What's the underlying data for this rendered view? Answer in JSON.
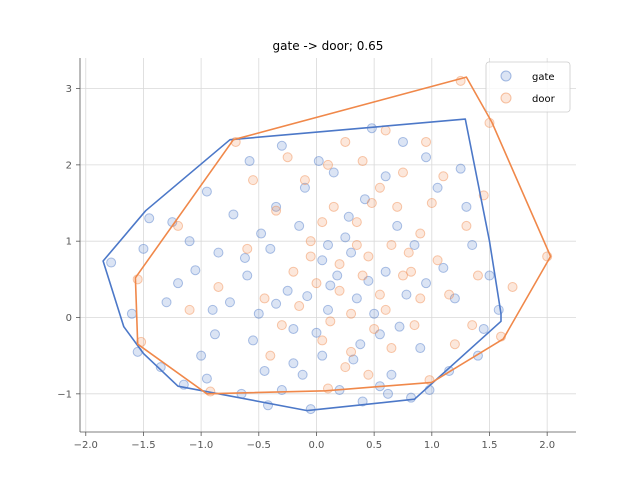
{
  "chart_data": {
    "type": "scatter",
    "title": "gate -> door; 0.65",
    "xlabel": "",
    "ylabel": "",
    "xlim": [
      -2.05,
      2.25
    ],
    "ylim": [
      -1.5,
      3.4
    ],
    "xticks": [
      -2.0,
      -1.5,
      -1.0,
      -0.5,
      0.0,
      0.5,
      1.0,
      1.5,
      2.0
    ],
    "xtick_labels": [
      "−2.0",
      "−1.5",
      "−1.0",
      "−0.5",
      "0.0",
      "0.5",
      "1.0",
      "1.5",
      "2.0"
    ],
    "yticks": [
      -1,
      0,
      1,
      2,
      3
    ],
    "ytick_labels": [
      "−1",
      "0",
      "1",
      "2",
      "3"
    ],
    "grid": true,
    "legend_position": "top-right",
    "series": [
      {
        "name": "gate",
        "color": "#4c78c8",
        "hull": [
          [
            -1.85,
            0.74
          ],
          [
            -1.48,
            1.4
          ],
          [
            -0.75,
            2.33
          ],
          [
            1.29,
            2.6
          ],
          [
            1.5,
            1.0
          ],
          [
            1.6,
            0.05
          ],
          [
            1.6,
            -0.05
          ],
          [
            0.85,
            -1.07
          ],
          [
            -0.08,
            -1.22
          ],
          [
            -1.2,
            -0.9
          ],
          [
            -1.5,
            -0.47
          ],
          [
            -1.67,
            -0.12
          ]
        ],
        "points": [
          [
            0.12,
            0.42
          ],
          [
            -0.35,
            0.18
          ],
          [
            0.55,
            -0.22
          ],
          [
            0.3,
            0.85
          ],
          [
            -0.6,
            0.55
          ],
          [
            0.05,
            -0.5
          ],
          [
            0.78,
            0.3
          ],
          [
            -0.15,
            1.2
          ],
          [
            0.42,
            1.55
          ],
          [
            -0.9,
            0.1
          ],
          [
            1.1,
            0.65
          ],
          [
            -1.2,
            0.45
          ],
          [
            0.2,
            -0.95
          ],
          [
            -0.45,
            -0.7
          ],
          [
            0.65,
            -0.75
          ],
          [
            -0.72,
            1.35
          ],
          [
            1.3,
            1.45
          ],
          [
            -1.45,
            1.3
          ],
          [
            0.95,
            2.1
          ],
          [
            -0.3,
            2.25
          ],
          [
            0.48,
            2.48
          ],
          [
            1.58,
            0.1
          ],
          [
            -1.78,
            0.72
          ],
          [
            -1.55,
            -0.45
          ],
          [
            -1.15,
            -0.88
          ],
          [
            -0.05,
            -1.2
          ],
          [
            0.82,
            -1.05
          ],
          [
            1.45,
            -0.15
          ],
          [
            0.1,
            0.1
          ],
          [
            -0.2,
            -0.15
          ],
          [
            0.35,
            0.25
          ],
          [
            -0.55,
            -0.3
          ],
          [
            0.6,
            0.6
          ],
          [
            -0.85,
            0.85
          ],
          [
            0.9,
            -0.4
          ],
          [
            -1.0,
            -0.5
          ],
          [
            0.25,
            1.05
          ],
          [
            -0.4,
            0.9
          ],
          [
            0.7,
            1.2
          ],
          [
            -1.3,
            0.2
          ],
          [
            1.2,
            0.25
          ],
          [
            -0.65,
            -1.0
          ],
          [
            0.4,
            -1.1
          ],
          [
            -0.1,
            1.7
          ],
          [
            0.15,
            1.9
          ],
          [
            -0.95,
            1.65
          ],
          [
            1.05,
            1.7
          ],
          [
            -1.1,
            1.0
          ],
          [
            0.5,
            0.05
          ],
          [
            -0.25,
            0.35
          ],
          [
            0.05,
            0.75
          ],
          [
            -0.75,
            0.2
          ],
          [
            0.32,
            -0.55
          ],
          [
            -0.5,
            0.05
          ],
          [
            0.85,
            0.95
          ],
          [
            -0.3,
            -0.95
          ],
          [
            1.35,
            0.95
          ],
          [
            -1.6,
            0.05
          ],
          [
            -0.35,
            1.45
          ],
          [
            0.6,
            1.85
          ],
          [
            1.4,
            -0.5
          ],
          [
            -1.35,
            -0.65
          ],
          [
            0.0,
            -0.2
          ],
          [
            0.18,
            0.55
          ],
          [
            -0.08,
            0.28
          ],
          [
            0.45,
            0.48
          ],
          [
            -0.62,
            0.78
          ],
          [
            0.72,
            -0.12
          ],
          [
            -0.88,
            -0.22
          ],
          [
            0.95,
            0.45
          ],
          [
            -1.05,
            0.62
          ],
          [
            0.28,
            1.32
          ],
          [
            -0.48,
            1.1
          ],
          [
            0.55,
            -0.9
          ],
          [
            -0.2,
            -0.6
          ],
          [
            1.15,
            -0.7
          ],
          [
            -1.25,
            1.25
          ],
          [
            0.75,
            2.3
          ],
          [
            -0.58,
            2.05
          ],
          [
            0.02,
            2.05
          ],
          [
            1.25,
            1.95
          ],
          [
            -1.5,
            0.9
          ],
          [
            1.5,
            0.55
          ],
          [
            -0.42,
            -1.15
          ],
          [
            0.62,
            -1.0
          ],
          [
            -0.95,
            -0.8
          ],
          [
            0.98,
            -0.95
          ],
          [
            0.1,
            0.95
          ],
          [
            -0.12,
            -0.75
          ],
          [
            0.38,
            -0.35
          ]
        ]
      },
      {
        "name": "door",
        "color": "#f0884a",
        "hull": [
          [
            -0.72,
            2.33
          ],
          [
            1.3,
            3.15
          ],
          [
            1.52,
            2.56
          ],
          [
            2.03,
            0.8
          ],
          [
            1.62,
            -0.28
          ],
          [
            1.0,
            -0.85
          ],
          [
            0.08,
            -0.96
          ],
          [
            -0.95,
            -1.0
          ],
          [
            -1.55,
            -0.35
          ],
          [
            -1.57,
            0.52
          ]
        ],
        "points": [
          [
            0.2,
            0.35
          ],
          [
            0.45,
            0.8
          ],
          [
            0.05,
            -0.3
          ],
          [
            0.6,
            0.1
          ],
          [
            -0.2,
            0.6
          ],
          [
            0.35,
            1.25
          ],
          [
            0.75,
            0.55
          ],
          [
            -0.05,
            1.0
          ],
          [
            0.9,
            1.1
          ],
          [
            0.25,
            -0.65
          ],
          [
            1.15,
            0.3
          ],
          [
            -0.45,
            0.25
          ],
          [
            0.55,
            1.7
          ],
          [
            0.1,
            2.0
          ],
          [
            0.95,
            2.3
          ],
          [
            1.25,
            3.1
          ],
          [
            1.5,
            2.55
          ],
          [
            2.0,
            0.8
          ],
          [
            1.6,
            -0.25
          ],
          [
            0.98,
            -0.82
          ],
          [
            0.1,
            -0.93
          ],
          [
            -0.92,
            -0.97
          ],
          [
            -1.52,
            -0.32
          ],
          [
            -1.55,
            0.5
          ],
          [
            -0.7,
            2.3
          ],
          [
            0.3,
            0.05
          ],
          [
            0.65,
            -0.4
          ],
          [
            -0.3,
            -0.1
          ],
          [
            0.8,
            0.85
          ],
          [
            0.4,
            0.55
          ],
          [
            0.15,
            1.45
          ],
          [
            0.7,
            1.45
          ],
          [
            -0.35,
            1.4
          ],
          [
            1.05,
            0.75
          ],
          [
            0.5,
            -0.15
          ],
          [
            -0.15,
            0.15
          ],
          [
            0.85,
            -0.1
          ],
          [
            1.3,
            1.2
          ],
          [
            1.4,
            0.55
          ],
          [
            -0.6,
            0.9
          ],
          [
            -0.85,
            0.4
          ],
          [
            0.25,
            2.3
          ],
          [
            0.6,
            2.45
          ],
          [
            1.1,
            1.85
          ],
          [
            -0.1,
            1.8
          ],
          [
            0.45,
            -0.75
          ],
          [
            0.0,
            0.45
          ],
          [
            0.35,
            0.95
          ],
          [
            0.9,
            0.25
          ],
          [
            -0.4,
            -0.5
          ],
          [
            1.2,
            -0.35
          ],
          [
            -1.1,
            0.1
          ],
          [
            0.55,
            0.3
          ],
          [
            0.2,
            0.7
          ],
          [
            0.75,
            1.9
          ],
          [
            1.45,
            1.6
          ],
          [
            -1.2,
            1.2
          ],
          [
            0.3,
            -0.45
          ],
          [
            0.65,
            0.95
          ],
          [
            0.05,
            1.25
          ],
          [
            1.0,
            1.5
          ],
          [
            -0.55,
            1.8
          ],
          [
            1.7,
            0.4
          ],
          [
            0.4,
            2.05
          ],
          [
            -0.25,
            2.1
          ],
          [
            0.82,
            0.6
          ],
          [
            0.12,
            -0.05
          ],
          [
            -0.05,
            0.8
          ],
          [
            0.48,
            1.5
          ],
          [
            1.35,
            -0.1
          ]
        ]
      }
    ]
  }
}
